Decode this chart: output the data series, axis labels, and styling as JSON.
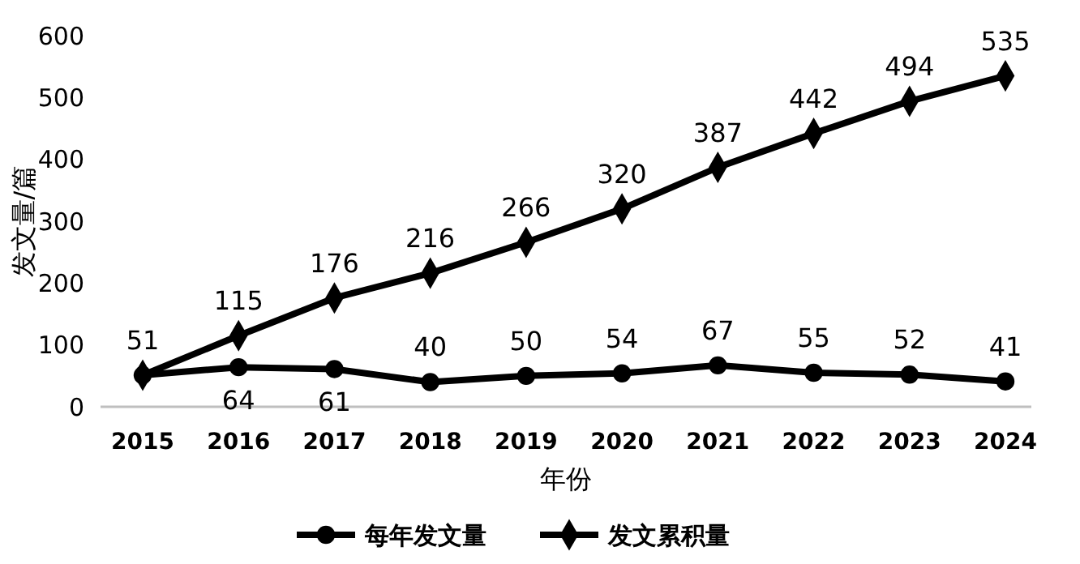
{
  "chart_data": {
    "type": "line",
    "xlabel": "年份",
    "ylabel": "发文量/篇",
    "categories": [
      "2015",
      "2016",
      "2017",
      "2018",
      "2019",
      "2020",
      "2021",
      "2022",
      "2023",
      "2024"
    ],
    "series": [
      {
        "name": "每年发文量",
        "color": "#000000",
        "marker": "circle",
        "values": [
          51,
          64,
          61,
          40,
          50,
          54,
          67,
          55,
          52,
          41
        ],
        "value_labels": [
          null,
          "64",
          "61",
          "40",
          "50",
          "54",
          "67",
          "55",
          "52",
          "41"
        ]
      },
      {
        "name": "发文累积量",
        "color": "#000000",
        "marker": "diamond",
        "values": [
          51,
          115,
          176,
          216,
          266,
          320,
          387,
          442,
          494,
          535
        ],
        "value_labels": [
          "51",
          "115",
          "176",
          "216",
          "266",
          "320",
          "387",
          "442",
          "494",
          "535"
        ]
      }
    ],
    "ylim": [
      0,
      600
    ],
    "yticks": [
      0,
      100,
      200,
      300,
      400,
      500,
      600
    ],
    "grid": false,
    "legend": "bottom"
  }
}
